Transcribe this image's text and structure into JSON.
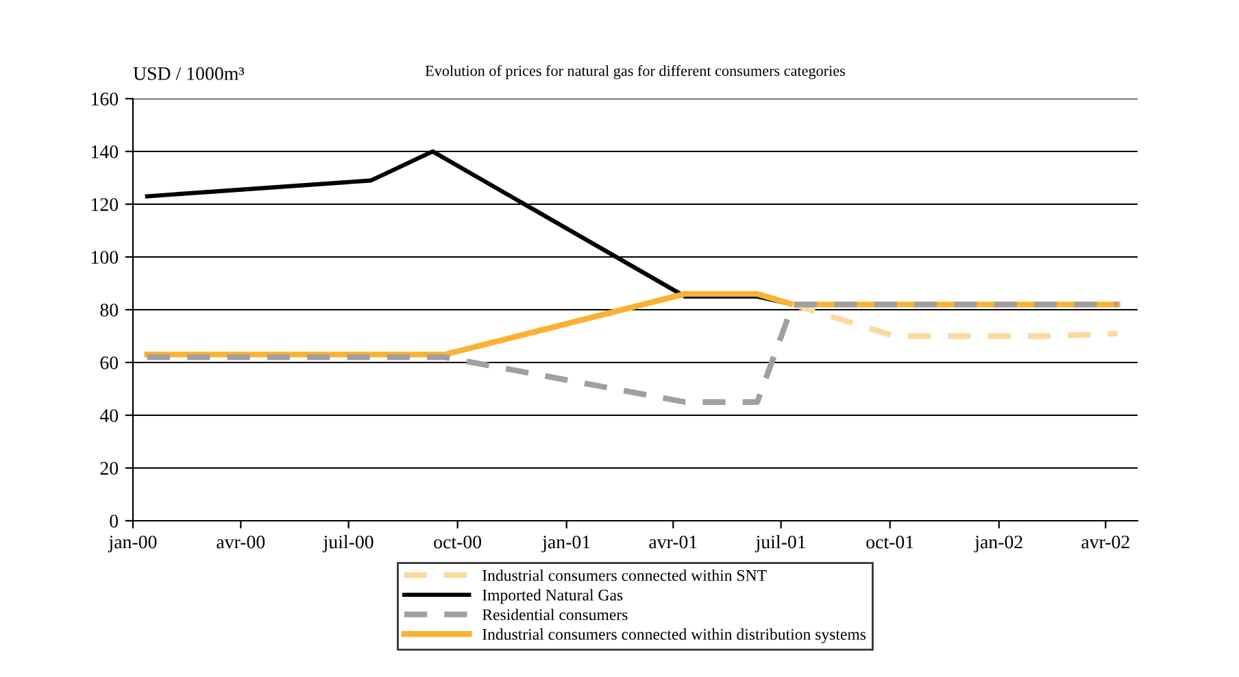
{
  "chart_data": {
    "type": "line",
    "title": "Evolution of prices for natural gas for different consumers categories",
    "ylabel": "USD / 1000m³",
    "series": [
      {
        "name": "Industrial consumers connected within SNT",
        "color": "#fdd9a0",
        "line_style": "dashed",
        "x": [
          "2001-07-11",
          "2001-10-05",
          "2002-02-15",
          "2002-04-11"
        ],
        "values": [
          82,
          70,
          70,
          71
        ]
      },
      {
        "name": "Imported Natural Gas",
        "color": "#000000",
        "line_style": "solid",
        "x": [
          "2000-01-13",
          "2000-07-20",
          "2000-09-10",
          "2001-04-11",
          "2001-06-11",
          "2001-07-11",
          "2002-04-11"
        ],
        "values": [
          123,
          129,
          140,
          85,
          85,
          82,
          82
        ]
      },
      {
        "name": "Residential consumers",
        "color": "#a0a0a0",
        "line_style": "dashed",
        "x": [
          "2000-01-13",
          "2000-09-20",
          "2001-04-11",
          "2001-06-11",
          "2001-07-11",
          "2002-04-11"
        ],
        "values": [
          62,
          62,
          45,
          45,
          82,
          82
        ]
      },
      {
        "name": "Industrial consumers connected within distribution systems",
        "color": "#f9b233",
        "line_style": "solid",
        "x": [
          "2000-01-13",
          "2000-09-20",
          "2001-04-11",
          "2001-06-11",
          "2001-07-11",
          "2002-04-11"
        ],
        "values": [
          63,
          63,
          86,
          86,
          82,
          82
        ]
      }
    ],
    "xlim": [
      "2000-01-01",
      "2002-04-28"
    ],
    "xticks": [
      {
        "value": "2000-01-01",
        "label": "jan-00"
      },
      {
        "value": "2000-04-01",
        "label": "avr-00"
      },
      {
        "value": "2000-07-01",
        "label": "juil-00"
      },
      {
        "value": "2000-10-01",
        "label": "oct-00"
      },
      {
        "value": "2001-01-01",
        "label": "jan-01"
      },
      {
        "value": "2001-04-01",
        "label": "avr-01"
      },
      {
        "value": "2001-07-01",
        "label": "juil-01"
      },
      {
        "value": "2001-10-01",
        "label": "oct-01"
      },
      {
        "value": "2002-01-01",
        "label": "jan-02"
      },
      {
        "value": "2002-04-01",
        "label": "avr-02"
      }
    ],
    "ylim": [
      0,
      160
    ],
    "yticks": [
      0,
      20,
      40,
      60,
      80,
      100,
      120,
      140,
      160
    ],
    "grid": "y",
    "legend": "bottom",
    "marker": "none"
  }
}
